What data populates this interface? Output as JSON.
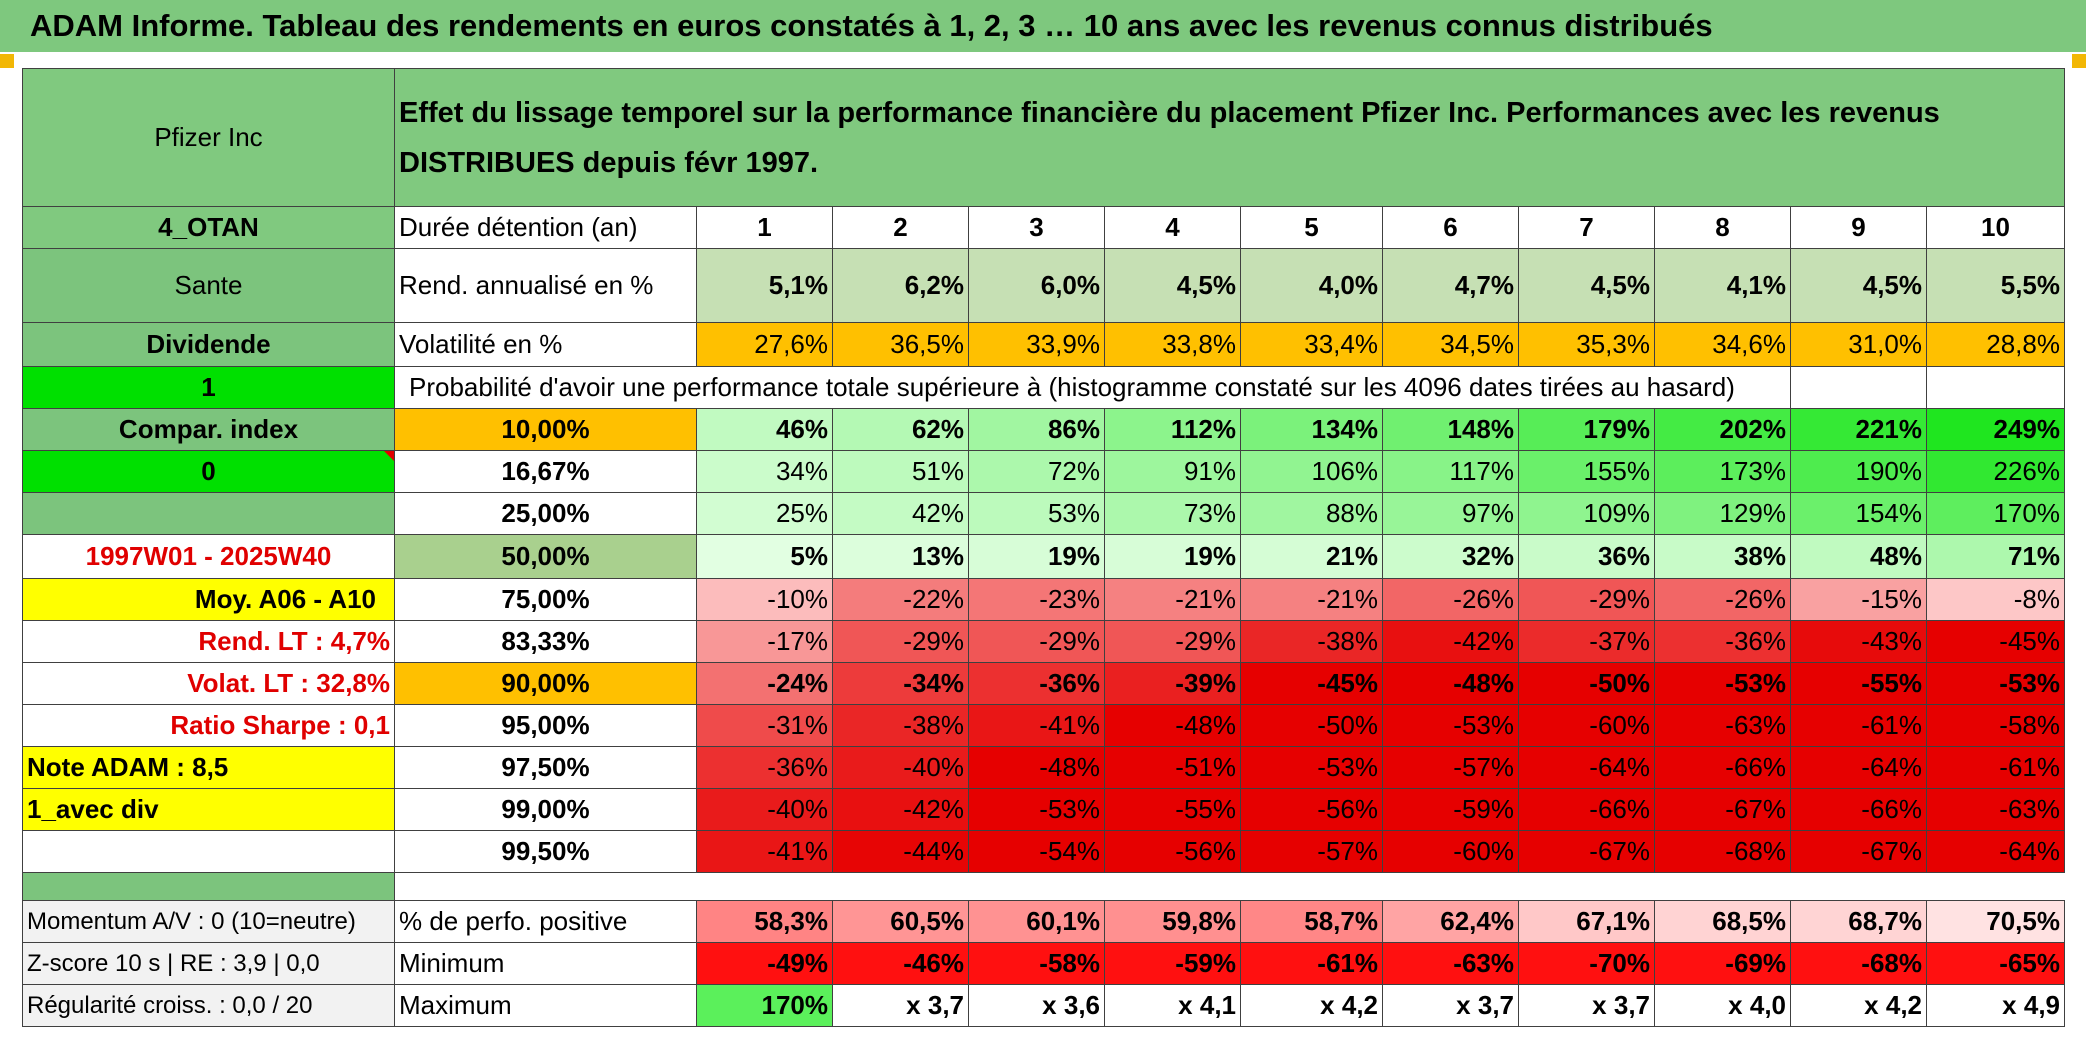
{
  "title": "ADAM Informe. Tableau des rendements en euros constatés à 1, 2, 3 … 10 ans avec les revenus connus distribués",
  "colors": {
    "header_green": "#80c97f",
    "bright_green": "#00e000",
    "yellow": "#ffff00",
    "orange": "#ffc000",
    "accent_red": "#e00000"
  },
  "left": {
    "company": "Pfizer Inc",
    "code": "4_OTAN",
    "sector": "Sante",
    "type": "Dividende",
    "flag1": "1",
    "compar": "Compar. index",
    "flag2": "0",
    "period": "1997W01 - 2025W40",
    "moy": "Moy. A06 - A10",
    "rend_lt": "Rend. LT :   4,7%",
    "volat_lt": "Volat. LT :   32,8%",
    "sharpe": "Ratio Sharpe :    0,1",
    "note": "Note ADAM : 8,5",
    "div": "1_avec div",
    "momentum": "Momentum A/V : 0 (10=neutre)",
    "zscore": "Z-score 10 s | RE : 3,9 | 0,0",
    "regularite": "Régularité croiss. : 0,0 / 20"
  },
  "header_text": "Effet du lissage temporel sur la performance financière du placement Pfizer Inc. Performances avec les revenus DISTRIBUES depuis févr 1997.",
  "duration_label": "Durée détention (an)",
  "years": [
    "1",
    "2",
    "3",
    "4",
    "5",
    "6",
    "7",
    "8",
    "9",
    "10"
  ],
  "rend_label": "Rend. annualisé en %",
  "rend_values": [
    "5,1%",
    "6,2%",
    "6,0%",
    "4,5%",
    "4,0%",
    "4,7%",
    "4,5%",
    "4,1%",
    "4,5%",
    "5,5%"
  ],
  "vol_label": "Volatilité en %",
  "vol_values": [
    "27,6%",
    "36,5%",
    "33,9%",
    "33,8%",
    "33,4%",
    "34,5%",
    "35,3%",
    "34,6%",
    "31,0%",
    "28,8%"
  ],
  "prob_label": "Probabilité d'avoir une performance totale supérieure à (histogramme constaté sur les 4096 dates tirées au hasard)",
  "percentile_rows": [
    {
      "label": "10,00%",
      "values": [
        "46%",
        "62%",
        "86%",
        "112%",
        "134%",
        "148%",
        "179%",
        "202%",
        "221%",
        "249%"
      ]
    },
    {
      "label": "16,67%",
      "values": [
        "34%",
        "51%",
        "72%",
        "91%",
        "106%",
        "117%",
        "155%",
        "173%",
        "190%",
        "226%"
      ]
    },
    {
      "label": "25,00%",
      "values": [
        "25%",
        "42%",
        "53%",
        "73%",
        "88%",
        "97%",
        "109%",
        "129%",
        "154%",
        "170%"
      ]
    },
    {
      "label": "50,00%",
      "values": [
        "5%",
        "13%",
        "19%",
        "19%",
        "21%",
        "32%",
        "36%",
        "38%",
        "48%",
        "71%"
      ]
    },
    {
      "label": "75,00%",
      "values": [
        "-10%",
        "-22%",
        "-23%",
        "-21%",
        "-21%",
        "-26%",
        "-29%",
        "-26%",
        "-15%",
        "-8%"
      ]
    },
    {
      "label": "83,33%",
      "values": [
        "-17%",
        "-29%",
        "-29%",
        "-29%",
        "-38%",
        "-42%",
        "-37%",
        "-36%",
        "-43%",
        "-45%"
      ]
    },
    {
      "label": "90,00%",
      "values": [
        "-24%",
        "-34%",
        "-36%",
        "-39%",
        "-45%",
        "-48%",
        "-50%",
        "-53%",
        "-55%",
        "-53%"
      ]
    },
    {
      "label": "95,00%",
      "values": [
        "-31%",
        "-38%",
        "-41%",
        "-48%",
        "-50%",
        "-53%",
        "-60%",
        "-63%",
        "-61%",
        "-58%"
      ]
    },
    {
      "label": "97,50%",
      "values": [
        "-36%",
        "-40%",
        "-48%",
        "-51%",
        "-53%",
        "-57%",
        "-64%",
        "-66%",
        "-64%",
        "-61%"
      ]
    },
    {
      "label": "99,00%",
      "values": [
        "-40%",
        "-42%",
        "-53%",
        "-55%",
        "-56%",
        "-59%",
        "-66%",
        "-67%",
        "-66%",
        "-63%"
      ]
    },
    {
      "label": "99,50%",
      "values": [
        "-41%",
        "-44%",
        "-54%",
        "-56%",
        "-57%",
        "-60%",
        "-67%",
        "-68%",
        "-67%",
        "-64%"
      ]
    }
  ],
  "pos_label": "% de perfo. positive",
  "pos_values": [
    "58,3%",
    "60,5%",
    "60,1%",
    "59,8%",
    "58,7%",
    "62,4%",
    "67,1%",
    "68,5%",
    "68,7%",
    "70,5%"
  ],
  "min_label": "Minimum",
  "min_values": [
    "-49%",
    "-46%",
    "-58%",
    "-59%",
    "-61%",
    "-63%",
    "-70%",
    "-69%",
    "-68%",
    "-65%"
  ],
  "max_label": "Maximum",
  "max_values": [
    "170%",
    "x 3,7",
    "x 3,6",
    "x 4,1",
    "x 4,2",
    "x 3,7",
    "x 3,7",
    "x 4,0",
    "x 4,2",
    "x 4,9"
  ]
}
